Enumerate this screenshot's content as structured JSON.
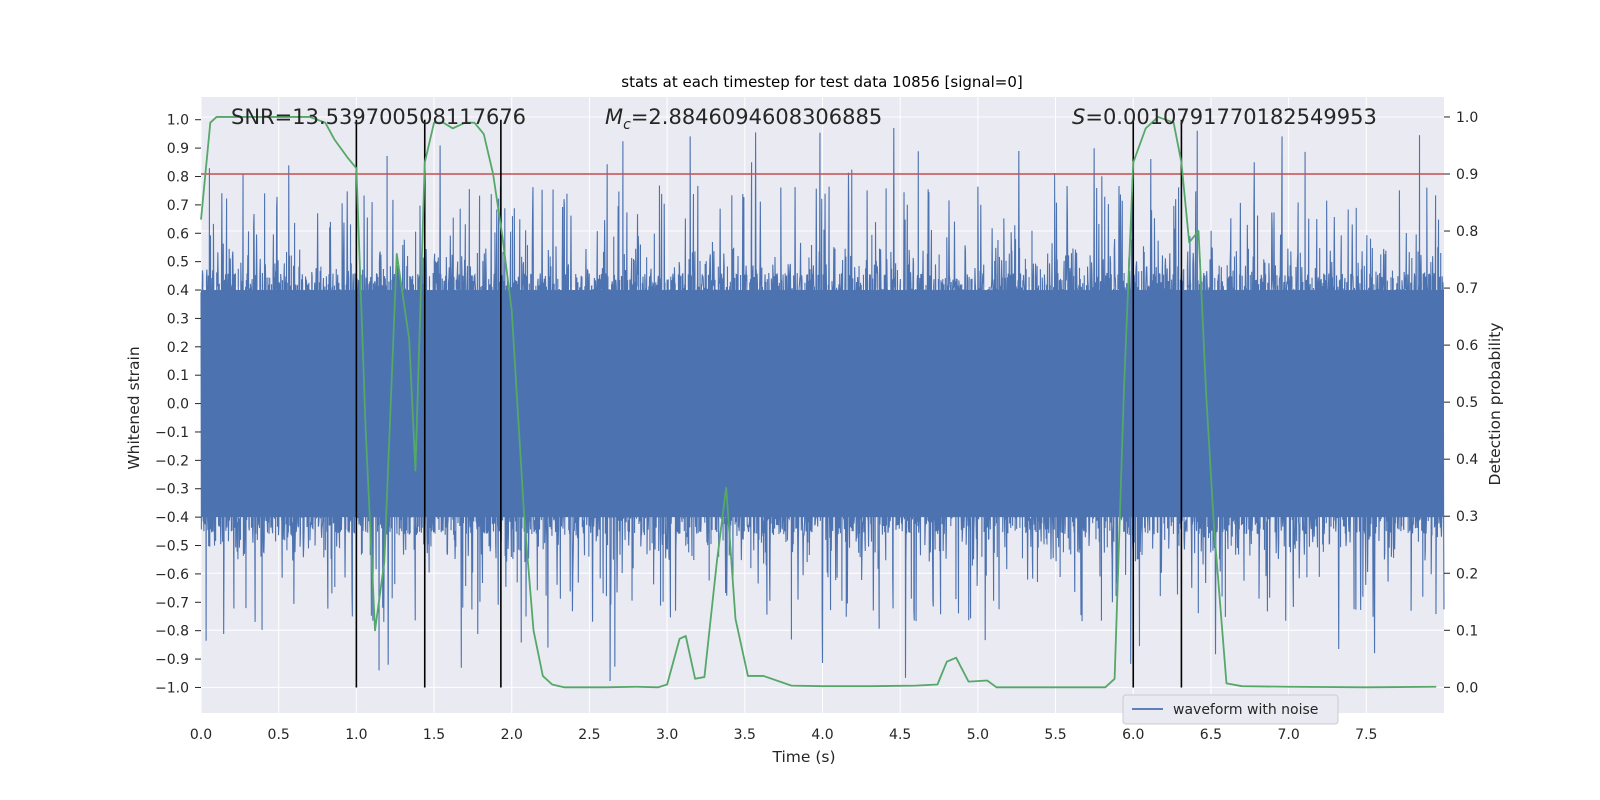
{
  "chart_data": {
    "type": "line",
    "title": "stats at each timestep for test data 10856 [signal=0]",
    "xlabel": "Time (s)",
    "ylabel_left": "Whitened strain",
    "ylabel_right": "Detection probability",
    "xlim": [
      0.0,
      8.0
    ],
    "ylim_left": [
      -1.09,
      1.08
    ],
    "ylim_right": [
      -0.045,
      1.035
    ],
    "x_ticks": [
      "0.0",
      "0.5",
      "1.0",
      "1.5",
      "2.0",
      "2.5",
      "3.0",
      "3.5",
      "4.0",
      "4.5",
      "5.0",
      "5.5",
      "6.0",
      "6.5",
      "7.0",
      "7.5"
    ],
    "y_ticks_left": [
      "1.0",
      "0.9",
      "0.8",
      "0.7",
      "0.6",
      "0.5",
      "0.4",
      "0.3",
      "0.2",
      "0.1",
      "0.0",
      "-0.1",
      "-0.2",
      "-0.3",
      "-0.4",
      "-0.5",
      "-0.6",
      "-0.7",
      "-0.8",
      "-0.9",
      "-1.0"
    ],
    "y_ticks_right": [
      "1.0",
      "0.9",
      "0.8",
      "0.7",
      "0.6",
      "0.5",
      "0.4",
      "0.3",
      "0.2",
      "0.1",
      "0.0"
    ],
    "annotations": {
      "snr": "SNR=13.539700508117676",
      "mc_symbol": "M",
      "mc_sub": "c",
      "mc_value": "=2.8846094608306885",
      "s_symbol": "S",
      "s_value": "=0.0010791770182549953"
    },
    "threshold_line": {
      "y_right": 0.9,
      "color": "#c44e52"
    },
    "vertical_markers": [
      1.0,
      1.44,
      1.93,
      6.0,
      6.31
    ],
    "legend": {
      "label": "waveform with noise",
      "position": "lower-right"
    },
    "series": [
      {
        "name": "waveform with noise",
        "axis": "left",
        "color": "#4c72b0",
        "description": "dense noisy whitened strain, baseline amplitude about ±0.4 with spikes"
      },
      {
        "name": "detection probability",
        "axis": "right",
        "color": "#55a868",
        "x": [
          0.0,
          0.06,
          0.1,
          0.2,
          0.4,
          0.6,
          0.7,
          0.8,
          0.86,
          0.94,
          1.0,
          1.06,
          1.12,
          1.18,
          1.26,
          1.34,
          1.38,
          1.44,
          1.5,
          1.56,
          1.62,
          1.7,
          1.76,
          1.82,
          1.88,
          1.94,
          2.0,
          2.08,
          2.14,
          2.2,
          2.26,
          2.34,
          2.44,
          2.6,
          2.8,
          2.94,
          3.0,
          3.08,
          3.12,
          3.18,
          3.24,
          3.32,
          3.38,
          3.44,
          3.52,
          3.62,
          3.8,
          4.0,
          4.3,
          4.6,
          4.74,
          4.8,
          4.86,
          4.94,
          5.06,
          5.12,
          5.2,
          5.5,
          5.82,
          5.88,
          5.94,
          6.0,
          6.08,
          6.16,
          6.26,
          6.31,
          6.36,
          6.42,
          6.47,
          6.52,
          6.6,
          6.7,
          7.0,
          7.5,
          7.95
        ],
        "values": [
          0.82,
          0.99,
          1.0,
          1.0,
          1.0,
          1.0,
          1.0,
          0.99,
          0.96,
          0.93,
          0.91,
          0.45,
          0.1,
          0.22,
          0.76,
          0.61,
          0.38,
          0.92,
          0.99,
          0.99,
          0.98,
          0.99,
          0.99,
          0.97,
          0.9,
          0.79,
          0.66,
          0.3,
          0.1,
          0.02,
          0.005,
          0.0,
          0.0,
          0.0,
          0.001,
          0.0,
          0.005,
          0.085,
          0.09,
          0.015,
          0.018,
          0.22,
          0.35,
          0.12,
          0.02,
          0.02,
          0.003,
          0.002,
          0.002,
          0.003,
          0.005,
          0.045,
          0.052,
          0.01,
          0.012,
          0.0,
          0.0,
          0.0,
          0.0,
          0.015,
          0.52,
          0.92,
          0.98,
          1.0,
          0.99,
          0.92,
          0.78,
          0.8,
          0.51,
          0.28,
          0.007,
          0.002,
          0.001,
          0.0,
          0.001
        ]
      }
    ]
  }
}
